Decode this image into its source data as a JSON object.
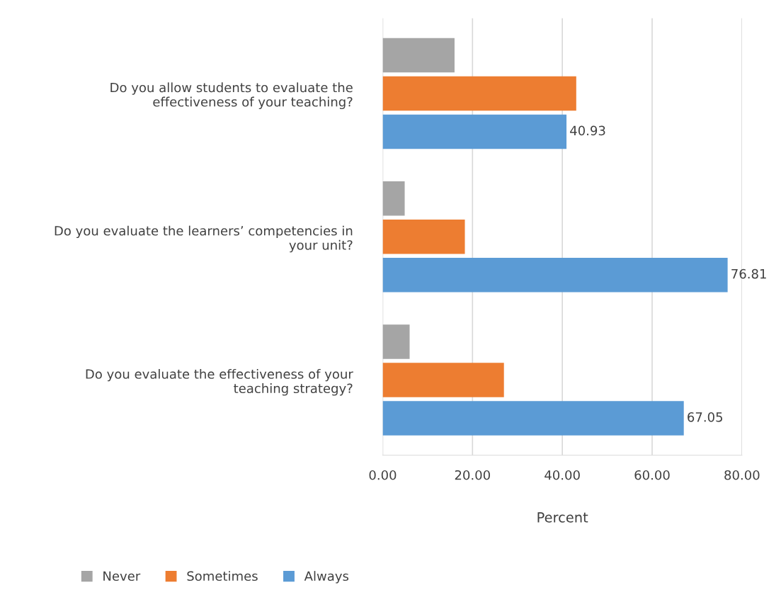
{
  "chart_data": {
    "type": "bar",
    "orientation": "horizontal",
    "categories": [
      "Do you allow students to evaluate the\neffectiveness of your teaching?",
      "Do you evaluate the learners’ competencies in\nyour unit?",
      "Do you evaluate the effectiveness of your\nteaching strategy?"
    ],
    "series": [
      {
        "name": "Never",
        "color": "#a5a5a5",
        "values": [
          16.0,
          4.9,
          6.0
        ]
      },
      {
        "name": "Sometimes",
        "color": "#ed7d31",
        "values": [
          43.1,
          18.3,
          27.0
        ]
      },
      {
        "name": "Always",
        "color": "#5b9bd5",
        "values": [
          40.93,
          76.81,
          67.05
        ],
        "value_labels": [
          "40.93",
          "76.81",
          "67.05"
        ]
      }
    ],
    "xlabel": "Percent",
    "xlim": [
      0,
      80
    ],
    "xticks": [
      {
        "value": 0,
        "label": "0.00"
      },
      {
        "value": 20,
        "label": "20.00"
      },
      {
        "value": 40,
        "label": "40.00"
      },
      {
        "value": 60,
        "label": "60.00"
      },
      {
        "value": 80,
        "label": "80.00"
      }
    ],
    "grid": "x",
    "legend": "bottom left"
  }
}
